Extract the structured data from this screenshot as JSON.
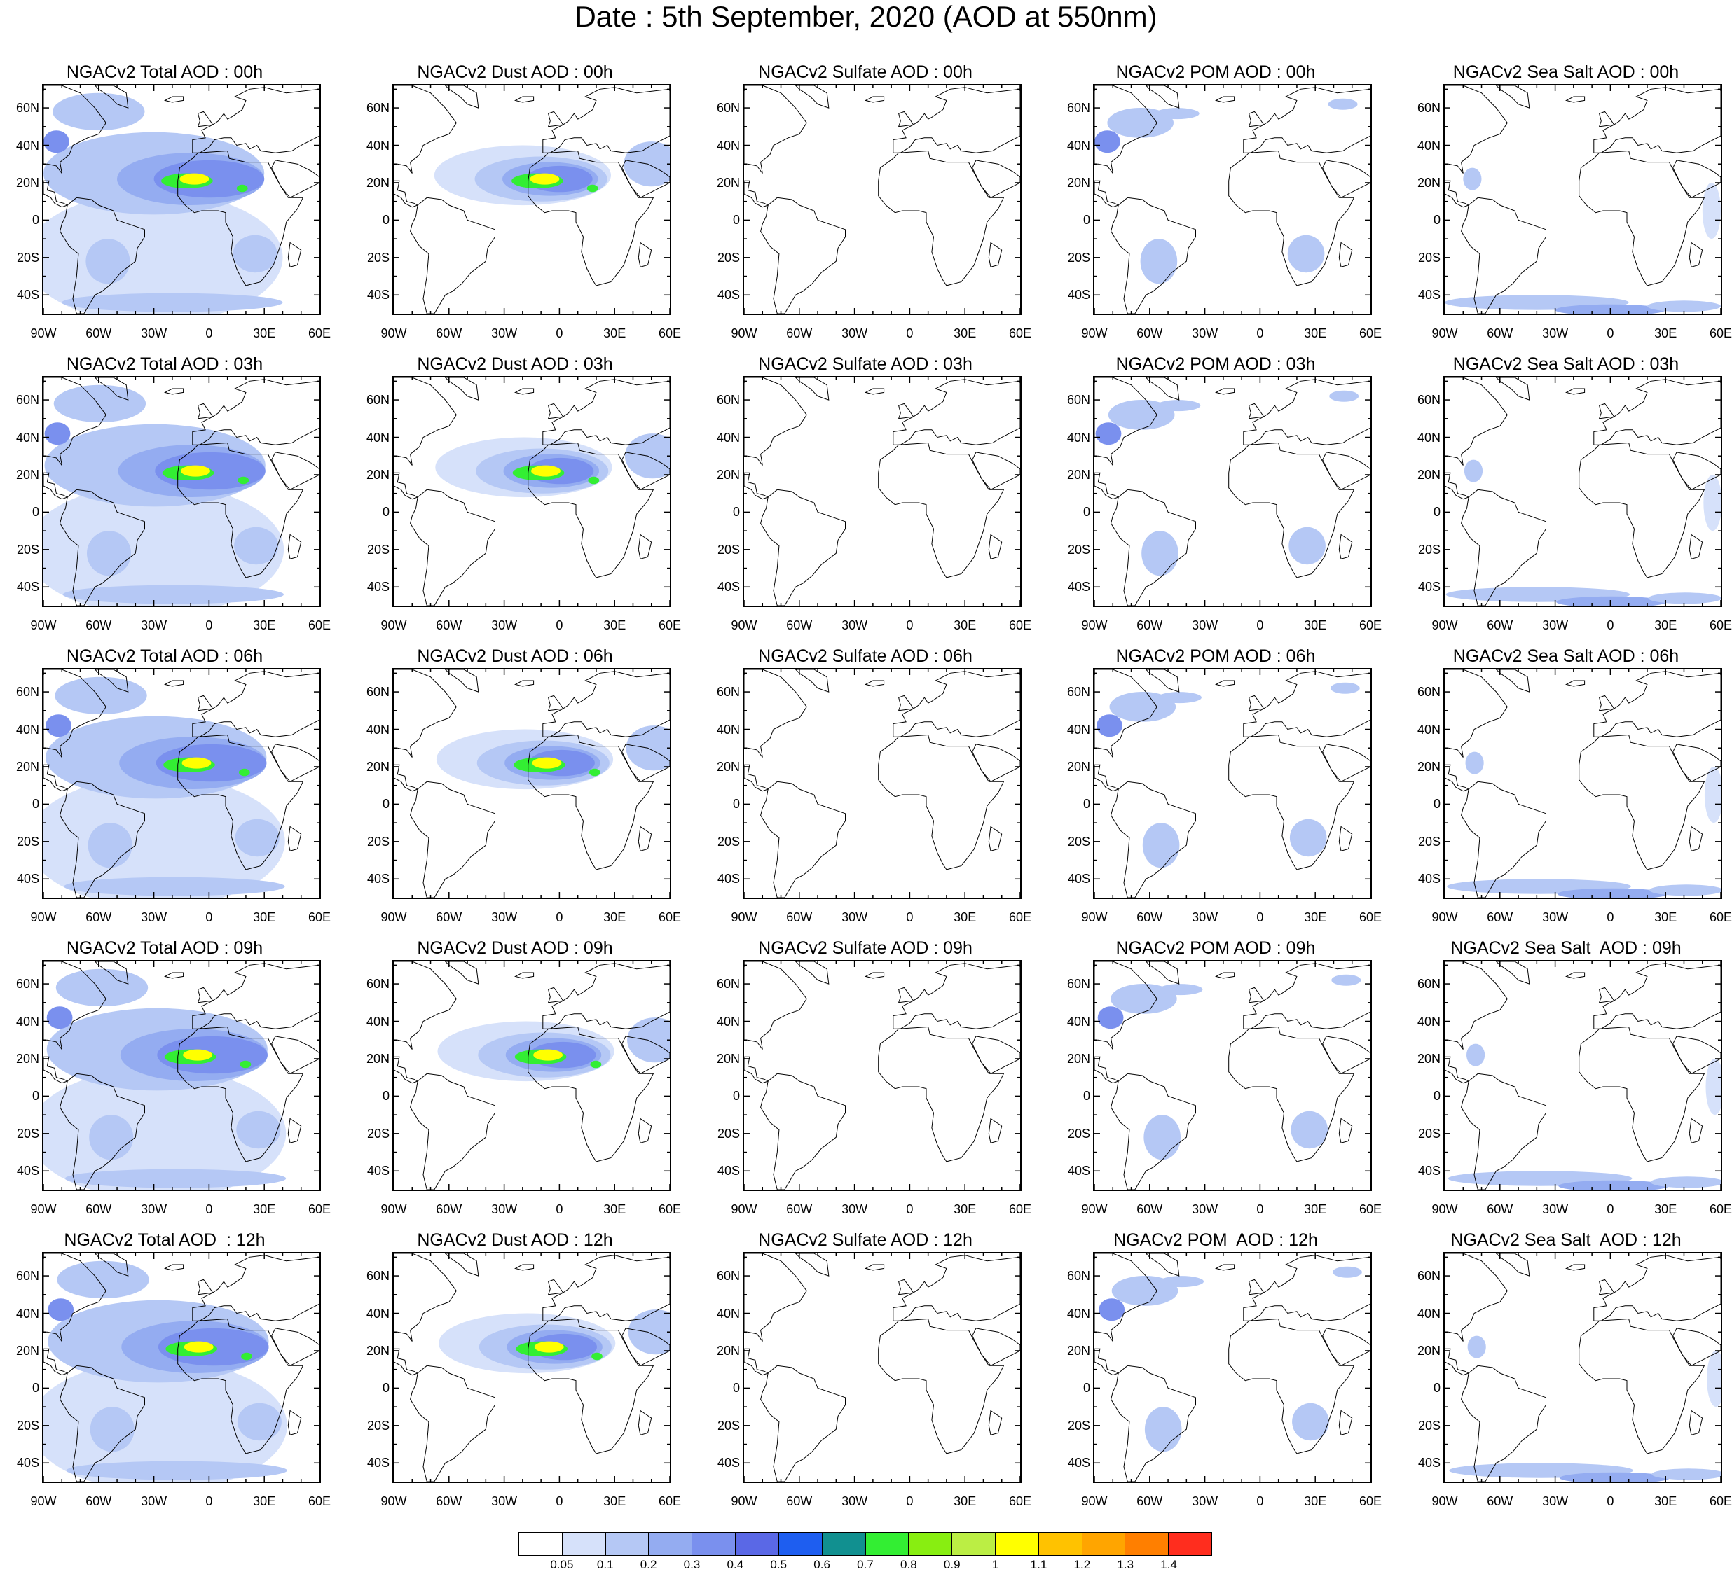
{
  "title": "Date : 5th September, 2020 (AOD at 550nm)",
  "lat_ticks": [
    "60N",
    "40N",
    "20N",
    "0",
    "20S",
    "40S"
  ],
  "lon_ticks": [
    "90W",
    "60W",
    "30W",
    "0",
    "30E",
    "60E"
  ],
  "map_extent": {
    "lon": [
      -90,
      60
    ],
    "lat": [
      -50,
      72
    ]
  },
  "row_hours": [
    "00h",
    "03h",
    "06h",
    "09h",
    "12h"
  ],
  "panels": [
    [
      "NGACv2 Total AOD : 00h",
      "NGACv2 Dust AOD : 00h",
      "NGACv2 Sulfate AOD : 00h",
      "NGACv2 POM AOD : 00h",
      "NGACv2 Sea Salt AOD : 00h"
    ],
    [
      "NGACv2 Total AOD : 03h",
      "NGACv2 Dust AOD : 03h",
      "NGACv2 Sulfate AOD : 03h",
      "NGACv2 POM AOD : 03h",
      "NGACv2 Sea Salt AOD : 03h"
    ],
    [
      "NGACv2 Total AOD : 06h",
      "NGACv2 Dust AOD : 06h",
      "NGACv2 Sulfate AOD : 06h",
      "NGACv2 POM AOD : 06h",
      "NGACv2 Sea Salt AOD : 06h"
    ],
    [
      "NGACv2 Total AOD : 09h",
      "NGACv2 Dust AOD : 09h",
      "NGACv2 Sulfate AOD : 09h",
      "NGACv2 POM AOD : 09h",
      "NGACv2 Sea Salt  AOD : 09h"
    ],
    [
      "NGACv2 Total AOD  : 12h",
      "NGACv2 Dust AOD : 12h",
      "NGACv2 Sulfate AOD : 12h",
      "NGACv2 POM  AOD : 12h",
      "NGACv2 Sea Salt  AOD : 12h"
    ]
  ],
  "panel_types": [
    "total",
    "dust",
    "sulfate",
    "pom",
    "seasalt"
  ],
  "colorbar": {
    "labels": [
      "0.05",
      "0.1",
      "0.2",
      "0.3",
      "0.4",
      "0.5",
      "0.6",
      "0.7",
      "0.8",
      "0.9",
      "1",
      "1.1",
      "1.2",
      "1.3",
      "1.4"
    ],
    "colors": [
      "#ffffff",
      "#d6e1fa",
      "#b5c8f5",
      "#94acf1",
      "#7a90ee",
      "#5a68e6",
      "#1e5ef0",
      "#119090",
      "#33ee33",
      "#88ee11",
      "#bbee44",
      "#ffff00",
      "#ffc200",
      "#ffa500",
      "#ff7f00",
      "#ff2d1e"
    ]
  }
}
